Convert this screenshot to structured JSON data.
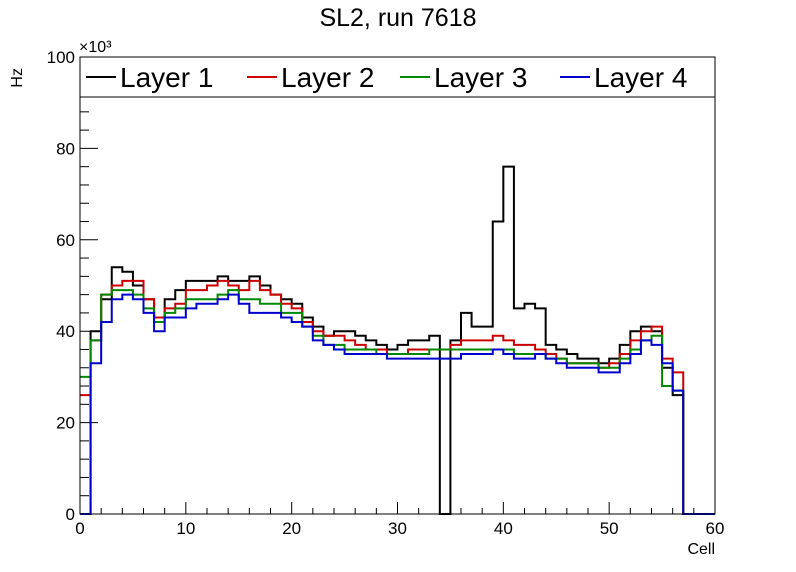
{
  "chart_data": {
    "type": "histogram",
    "title": "SL2, run 7618",
    "xlabel": "Cell",
    "ylabel": "Hz",
    "y_exponent_label": "×10³",
    "xlim": [
      0,
      60
    ],
    "ylim": [
      0,
      100
    ],
    "x_ticks": [
      "0",
      "10",
      "20",
      "30",
      "40",
      "50",
      "60"
    ],
    "y_ticks": [
      "0",
      "20",
      "40",
      "60",
      "80",
      "100"
    ],
    "bin_edges_start": 0,
    "bin_width": 1,
    "series": [
      {
        "name": "Layer 1",
        "color": "#000000",
        "values": [
          0,
          40,
          47,
          54,
          53,
          50,
          47,
          43,
          47,
          49,
          51,
          51,
          51,
          52,
          51,
          51,
          52,
          50,
          48,
          47,
          46,
          43,
          41,
          39,
          40,
          40,
          39,
          38,
          37,
          36,
          37,
          38,
          38,
          39,
          0,
          38,
          44,
          41,
          41,
          64,
          76,
          45,
          46,
          45,
          37,
          36,
          35,
          34,
          34,
          33,
          34,
          37,
          40,
          41,
          40,
          32,
          26,
          0,
          0,
          0
        ]
      },
      {
        "name": "Layer 2",
        "color": "#cc0000",
        "values": [
          26,
          38,
          48,
          50,
          51,
          51,
          47,
          43,
          45,
          46,
          49,
          49,
          50,
          51,
          50,
          49,
          51,
          49,
          48,
          46,
          45,
          42,
          40,
          39,
          39,
          38,
          37,
          36,
          36,
          35,
          35,
          36,
          36,
          36,
          36,
          37,
          38,
          38,
          38,
          39,
          38,
          37,
          37,
          36,
          35,
          34,
          33,
          33,
          33,
          32,
          33,
          35,
          38,
          40,
          41,
          34,
          31,
          0,
          0,
          0
        ]
      },
      {
        "name": "Layer 3",
        "color": "#008800",
        "values": [
          30,
          38,
          48,
          49,
          49,
          48,
          45,
          42,
          44,
          45,
          47,
          47,
          47,
          48,
          49,
          47,
          47,
          46,
          46,
          44,
          44,
          41,
          39,
          37,
          37,
          36,
          36,
          36,
          35,
          35,
          35,
          35,
          35,
          36,
          36,
          36,
          36,
          36,
          36,
          36,
          36,
          35,
          35,
          35,
          34,
          34,
          33,
          33,
          33,
          32,
          32,
          34,
          36,
          38,
          39,
          28,
          27,
          0,
          0,
          0
        ]
      },
      {
        "name": "Layer 4",
        "color": "#0000cc",
        "values": [
          0,
          33,
          42,
          47,
          48,
          47,
          44,
          40,
          43,
          43,
          45,
          46,
          46,
          47,
          48,
          46,
          44,
          44,
          44,
          43,
          42,
          41,
          38,
          37,
          36,
          35,
          35,
          35,
          35,
          34,
          34,
          34,
          34,
          34,
          34,
          34,
          35,
          35,
          35,
          36,
          35,
          34,
          34,
          35,
          34,
          33,
          32,
          32,
          32,
          31,
          31,
          33,
          35,
          38,
          37,
          33,
          27,
          0,
          0,
          0
        ]
      }
    ]
  }
}
